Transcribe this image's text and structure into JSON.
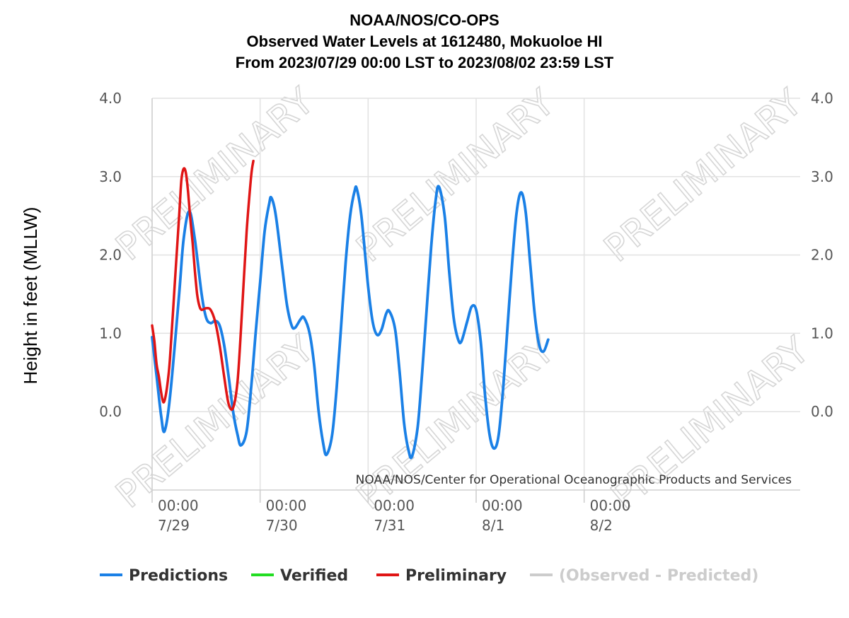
{
  "chart_data": {
    "type": "line",
    "title_lines": [
      "NOAA/NOS/CO-OPS",
      "Observed Water Levels at 1612480, Mokuoloe HI",
      "From 2023/07/29 00:00 LST to 2023/08/02 23:59 LST"
    ],
    "ylabel": "Height in feet (MLLW)",
    "xlabel": "",
    "credit": "NOAA/NOS/Center for Operational Oceanographic Products and Services",
    "watermark": "PRELIMINARY",
    "x_range": [
      "2023-07-29 00:00",
      "2023-08-04 00:00"
    ],
    "ylim": [
      -1.0,
      4.0
    ],
    "y_ticks": [
      "4.0",
      "3.0",
      "2.0",
      "1.0",
      "0.0"
    ],
    "y_tick_values": [
      4.0,
      3.0,
      2.0,
      1.0,
      0.0
    ],
    "x_ticks": [
      {
        "time": "2023-07-29 00:00",
        "line1": "00:00",
        "line2": "7/29"
      },
      {
        "time": "2023-07-30 00:00",
        "line1": "00:00",
        "line2": "7/30"
      },
      {
        "time": "2023-07-31 00:00",
        "line1": "00:00",
        "line2": "7/31"
      },
      {
        "time": "2023-08-01 00:00",
        "line1": "00:00",
        "line2": "8/1"
      },
      {
        "time": "2023-08-02 00:00",
        "line1": "00:00",
        "line2": "8/2"
      }
    ],
    "grid": true,
    "legend_position": "bottom",
    "series": [
      {
        "name": "Predictions",
        "color": "#1a80e6",
        "points": [
          [
            "2023-07-29 00:00",
            0.95
          ],
          [
            "2023-07-29 01:00",
            0.45
          ],
          [
            "2023-07-29 02:00",
            -0.05
          ],
          [
            "2023-07-29 02:45",
            -0.25
          ],
          [
            "2023-07-29 04:00",
            0.2
          ],
          [
            "2023-07-29 06:00",
            1.5
          ],
          [
            "2023-07-29 07:00",
            2.2
          ],
          [
            "2023-07-29 08:15",
            2.56
          ],
          [
            "2023-07-29 09:30",
            2.2
          ],
          [
            "2023-07-29 11:00",
            1.5
          ],
          [
            "2023-07-29 12:00",
            1.2
          ],
          [
            "2023-07-29 13:00",
            1.13
          ],
          [
            "2023-07-29 14:00",
            1.16
          ],
          [
            "2023-07-29 15:00",
            1.1
          ],
          [
            "2023-07-29 16:00",
            0.85
          ],
          [
            "2023-07-29 17:00",
            0.45
          ],
          [
            "2023-07-29 18:00",
            0.0
          ],
          [
            "2023-07-29 19:00",
            -0.3
          ],
          [
            "2023-07-29 19:45",
            -0.43
          ],
          [
            "2023-07-29 21:00",
            -0.25
          ],
          [
            "2023-07-29 22:00",
            0.3
          ],
          [
            "2023-07-29 23:00",
            1.0
          ],
          [
            "2023-07-30 00:00",
            1.65
          ],
          [
            "2023-07-30 01:00",
            2.3
          ],
          [
            "2023-07-30 02:00",
            2.65
          ],
          [
            "2023-07-30 02:30",
            2.73
          ],
          [
            "2023-07-30 03:30",
            2.5
          ],
          [
            "2023-07-30 05:00",
            1.8
          ],
          [
            "2023-07-30 06:00",
            1.35
          ],
          [
            "2023-07-30 07:00",
            1.1
          ],
          [
            "2023-07-30 07:45",
            1.07
          ],
          [
            "2023-07-30 09:00",
            1.18
          ],
          [
            "2023-07-30 09:45",
            1.2
          ],
          [
            "2023-07-30 11:00",
            1.0
          ],
          [
            "2023-07-30 12:00",
            0.6
          ],
          [
            "2023-07-30 13:00",
            0.0
          ],
          [
            "2023-07-30 14:00",
            -0.4
          ],
          [
            "2023-07-30 14:45",
            -0.55
          ],
          [
            "2023-07-30 16:00",
            -0.3
          ],
          [
            "2023-07-30 17:00",
            0.3
          ],
          [
            "2023-07-30 18:00",
            1.1
          ],
          [
            "2023-07-30 19:00",
            1.9
          ],
          [
            "2023-07-30 20:00",
            2.5
          ],
          [
            "2023-07-30 21:00",
            2.82
          ],
          [
            "2023-07-30 21:30",
            2.84
          ],
          [
            "2023-07-30 22:30",
            2.5
          ],
          [
            "2023-07-31 00:00",
            1.6
          ],
          [
            "2023-07-31 01:00",
            1.15
          ],
          [
            "2023-07-31 02:00",
            0.98
          ],
          [
            "2023-07-31 03:00",
            1.05
          ],
          [
            "2023-07-31 04:00",
            1.25
          ],
          [
            "2023-07-31 04:45",
            1.28
          ],
          [
            "2023-07-31 06:00",
            1.05
          ],
          [
            "2023-07-31 07:00",
            0.5
          ],
          [
            "2023-07-31 08:00",
            -0.15
          ],
          [
            "2023-07-31 09:00",
            -0.5
          ],
          [
            "2023-07-31 09:45",
            -0.57
          ],
          [
            "2023-07-31 11:00",
            -0.2
          ],
          [
            "2023-07-31 12:00",
            0.5
          ],
          [
            "2023-07-31 13:00",
            1.3
          ],
          [
            "2023-07-31 14:00",
            2.1
          ],
          [
            "2023-07-31 15:00",
            2.7
          ],
          [
            "2023-07-31 15:45",
            2.87
          ],
          [
            "2023-07-31 17:00",
            2.5
          ],
          [
            "2023-07-31 18:00",
            1.8
          ],
          [
            "2023-07-31 19:00",
            1.2
          ],
          [
            "2023-07-31 20:00",
            0.92
          ],
          [
            "2023-07-31 20:45",
            0.9
          ],
          [
            "2023-07-31 22:00",
            1.15
          ],
          [
            "2023-07-31 23:00",
            1.34
          ],
          [
            "2023-08-01 00:00",
            1.3
          ],
          [
            "2023-08-01 01:00",
            0.9
          ],
          [
            "2023-08-01 02:00",
            0.2
          ],
          [
            "2023-08-01 03:00",
            -0.3
          ],
          [
            "2023-08-01 04:00",
            -0.47
          ],
          [
            "2023-08-01 05:00",
            -0.3
          ],
          [
            "2023-08-01 06:00",
            0.3
          ],
          [
            "2023-08-01 07:00",
            1.1
          ],
          [
            "2023-08-01 08:00",
            1.9
          ],
          [
            "2023-08-01 09:00",
            2.55
          ],
          [
            "2023-08-01 10:00",
            2.8
          ],
          [
            "2023-08-01 11:00",
            2.55
          ],
          [
            "2023-08-01 12:00",
            1.9
          ],
          [
            "2023-08-01 13:00",
            1.25
          ],
          [
            "2023-08-01 14:00",
            0.85
          ],
          [
            "2023-08-01 15:00",
            0.77
          ],
          [
            "2023-08-01 16:00",
            0.92
          ]
        ]
      },
      {
        "name": "Verified",
        "color": "#22dd22",
        "points": []
      },
      {
        "name": "Preliminary",
        "color": "#e01515",
        "points": [
          [
            "2023-07-29 00:00",
            1.1
          ],
          [
            "2023-07-29 00:30",
            0.9
          ],
          [
            "2023-07-29 01:00",
            0.6
          ],
          [
            "2023-07-29 01:30",
            0.45
          ],
          [
            "2023-07-29 02:00",
            0.25
          ],
          [
            "2023-07-29 02:30",
            0.12
          ],
          [
            "2023-07-29 03:00",
            0.2
          ],
          [
            "2023-07-29 03:30",
            0.4
          ],
          [
            "2023-07-29 04:00",
            0.7
          ],
          [
            "2023-07-29 05:00",
            1.6
          ],
          [
            "2023-07-29 06:00",
            2.5
          ],
          [
            "2023-07-29 06:30",
            2.95
          ],
          [
            "2023-07-29 07:00",
            3.1
          ],
          [
            "2023-07-29 07:30",
            3.05
          ],
          [
            "2023-07-29 08:00",
            2.8
          ],
          [
            "2023-07-29 08:30",
            2.45
          ],
          [
            "2023-07-29 09:00",
            2.15
          ],
          [
            "2023-07-29 09:30",
            1.8
          ],
          [
            "2023-07-29 10:00",
            1.5
          ],
          [
            "2023-07-29 10:30",
            1.35
          ],
          [
            "2023-07-29 11:00",
            1.3
          ],
          [
            "2023-07-29 12:00",
            1.32
          ],
          [
            "2023-07-29 13:00",
            1.3
          ],
          [
            "2023-07-29 14:00",
            1.15
          ],
          [
            "2023-07-29 15:00",
            0.85
          ],
          [
            "2023-07-29 16:00",
            0.45
          ],
          [
            "2023-07-29 17:00",
            0.1
          ],
          [
            "2023-07-29 18:00",
            0.05
          ],
          [
            "2023-07-29 19:00",
            0.4
          ],
          [
            "2023-07-29 20:00",
            1.3
          ],
          [
            "2023-07-29 21:00",
            2.3
          ],
          [
            "2023-07-29 22:00",
            3.0
          ],
          [
            "2023-07-29 22:30",
            3.2
          ]
        ]
      }
    ],
    "legend": [
      {
        "label": "Predictions",
        "color": "#1a80e6",
        "text_color": "#333333"
      },
      {
        "label": "Verified",
        "color": "#22dd22",
        "text_color": "#333333"
      },
      {
        "label": "Preliminary",
        "color": "#e01515",
        "text_color": "#333333"
      },
      {
        "label": "(Observed - Predicted)",
        "color": "#cccccc",
        "text_color": "#cccccc"
      }
    ]
  }
}
